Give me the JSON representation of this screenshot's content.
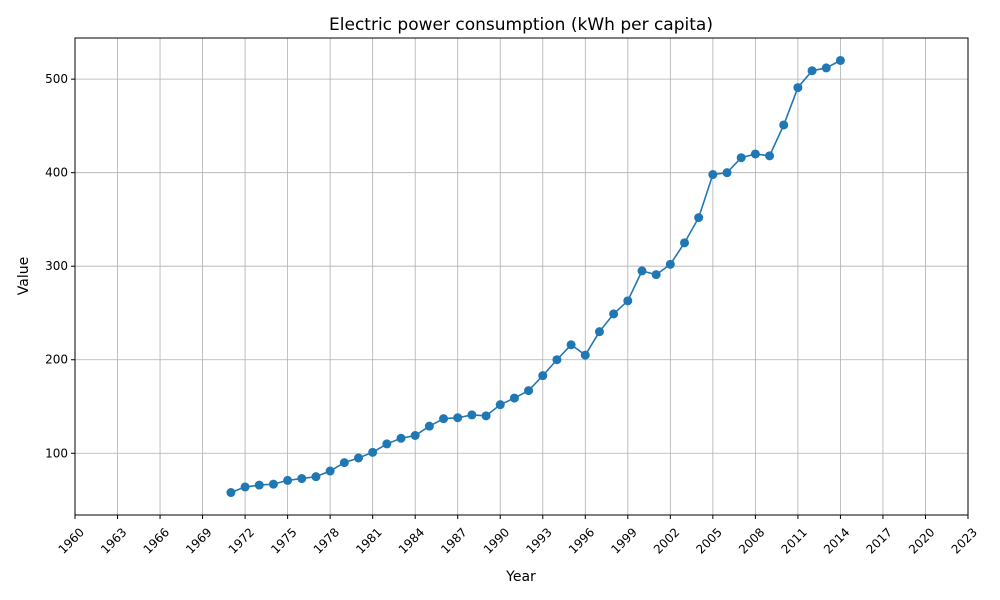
{
  "chart_data": {
    "type": "line",
    "title": "Electric power consumption (kWh per capita)",
    "xlabel": "Year",
    "ylabel": "Value",
    "xlim": [
      1960,
      2023
    ],
    "ylim": [
      34,
      544
    ],
    "x_ticks": [
      1960,
      1963,
      1966,
      1969,
      1972,
      1975,
      1978,
      1981,
      1984,
      1987,
      1990,
      1993,
      1996,
      1999,
      2002,
      2005,
      2008,
      2011,
      2014,
      2017,
      2020,
      2023
    ],
    "y_ticks": [
      100,
      200,
      300,
      400,
      500
    ],
    "grid": true,
    "color": "#1f77b4",
    "series": [
      {
        "x": [
          1971,
          1972,
          1973,
          1974,
          1975,
          1976,
          1977,
          1978,
          1979,
          1980,
          1981,
          1982,
          1983,
          1984,
          1985,
          1986,
          1987,
          1988,
          1989,
          1990,
          1991,
          1992,
          1993,
          1994,
          1995,
          1996,
          1997,
          1998,
          1999,
          2000,
          2001,
          2002,
          2003,
          2004,
          2005,
          2006,
          2007,
          2008,
          2009,
          2010,
          2011,
          2012,
          2013,
          2014
        ],
        "values": [
          58,
          64,
          66,
          67,
          71,
          73,
          75,
          81,
          90,
          95,
          101,
          110,
          116,
          119,
          129,
          137,
          138,
          141,
          140,
          152,
          159,
          167,
          183,
          200,
          216,
          205,
          230,
          249,
          263,
          295,
          291,
          302,
          325,
          352,
          398,
          400,
          416,
          420,
          418,
          451,
          491,
          509,
          512,
          520
        ]
      }
    ]
  }
}
